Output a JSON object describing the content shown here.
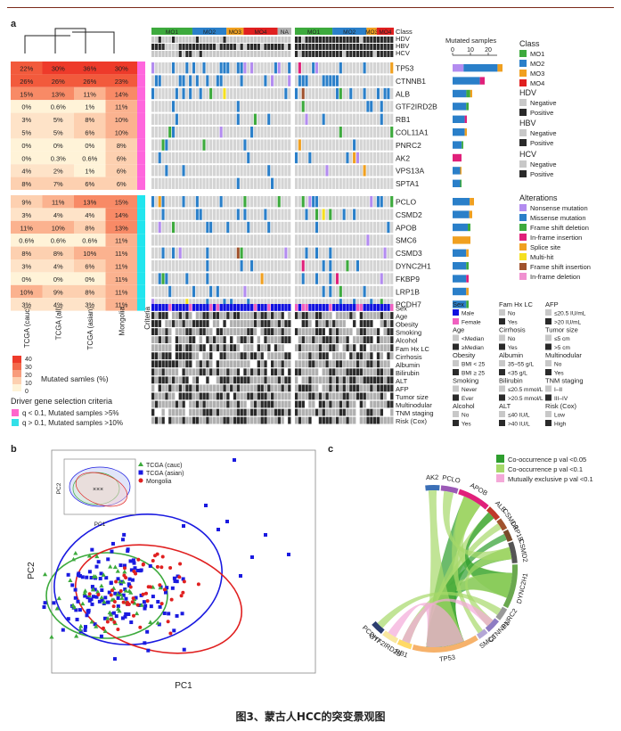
{
  "caption": "图3、蒙古人HCC的突变景观图",
  "panel_a": {
    "label": "a",
    "class_segments": [
      "MO1",
      "MO2",
      "MO3",
      "MO4",
      "NA",
      "MO1",
      "MO2",
      "MO3",
      "MO4"
    ],
    "track_labels": [
      "Class",
      "HDV",
      "HBV",
      "HCV"
    ],
    "mutated_samples_title": "Mutated samples",
    "bar_ticks": [
      "0",
      "10",
      "20"
    ],
    "cohorts": [
      "TCGA (cauc)",
      "TCGA (all)",
      "TCGA (asian)",
      "Mongolia"
    ],
    "criteria_label": "Criteria",
    "genes_group1": [
      {
        "name": "TP53",
        "pct": [
          "22%",
          "30%",
          "36%",
          "30%"
        ]
      },
      {
        "name": "CTNNB1",
        "pct": [
          "26%",
          "26%",
          "26%",
          "23%"
        ]
      },
      {
        "name": "ALB",
        "pct": [
          "15%",
          "13%",
          "11%",
          "14%"
        ]
      },
      {
        "name": "GTF2IRD2B",
        "pct": [
          "0%",
          "0.6%",
          "1%",
          "11%"
        ]
      },
      {
        "name": "RB1",
        "pct": [
          "3%",
          "5%",
          "8%",
          "10%"
        ]
      },
      {
        "name": "COL11A1",
        "pct": [
          "5%",
          "5%",
          "6%",
          "10%"
        ]
      },
      {
        "name": "PNRC2",
        "pct": [
          "0%",
          "0%",
          "0%",
          "8%"
        ]
      },
      {
        "name": "AK2",
        "pct": [
          "0%",
          "0.3%",
          "0.6%",
          "6%"
        ]
      },
      {
        "name": "VPS13A",
        "pct": [
          "4%",
          "2%",
          "1%",
          "6%"
        ]
      },
      {
        "name": "SPTA1",
        "pct": [
          "8%",
          "7%",
          "6%",
          "6%"
        ]
      }
    ],
    "genes_group2": [
      {
        "name": "PCLO",
        "pct": [
          "9%",
          "11%",
          "13%",
          "15%"
        ]
      },
      {
        "name": "CSMD2",
        "pct": [
          "3%",
          "4%",
          "4%",
          "14%"
        ]
      },
      {
        "name": "APOB",
        "pct": [
          "11%",
          "10%",
          "8%",
          "13%"
        ]
      },
      {
        "name": "SMC6",
        "pct": [
          "0.6%",
          "0.6%",
          "0.6%",
          "11%"
        ]
      },
      {
        "name": "CSMD3",
        "pct": [
          "8%",
          "8%",
          "10%",
          "11%"
        ]
      },
      {
        "name": "DYNC2H1",
        "pct": [
          "3%",
          "4%",
          "6%",
          "11%"
        ]
      },
      {
        "name": "FKBP9",
        "pct": [
          "0%",
          "0%",
          "0%",
          "11%"
        ]
      },
      {
        "name": "LRP1B",
        "pct": [
          "10%",
          "9%",
          "8%",
          "11%"
        ]
      },
      {
        "name": "PCDH7",
        "pct": [
          "3%",
          "4%",
          "3%",
          "11%"
        ]
      }
    ],
    "gene_bar_values": [
      28,
      18,
      11,
      9,
      8,
      8,
      6,
      5,
      5,
      5,
      12,
      11,
      10,
      10,
      9,
      9,
      9,
      9,
      9
    ],
    "clinical_rows": [
      "Sex",
      "Age",
      "Obesity",
      "Smoking",
      "Alcohol",
      "Fam Hx LC",
      "Cirrhosis",
      "Albumin",
      "Bilirubin",
      "ALT",
      "AFP",
      "Tumor size",
      "Multinodular",
      "TNM staging",
      "Risk (Cox)"
    ],
    "heat_legend": {
      "ticks": [
        "40",
        "30",
        "20",
        "10",
        "0"
      ],
      "title": "Mutated samles (%)"
    },
    "driver_title": "Driver gene selection criteria",
    "driver_items": [
      {
        "text": "q < 0.1, Mutated samples >5%",
        "color": "#ff66cc"
      },
      {
        "text": "q > 0.1, Mutated samples >10%",
        "color": "#33e0e8"
      }
    ],
    "legend_class": {
      "title": "Class",
      "items": [
        {
          "t": "MO1",
          "c": "#3daa3d"
        },
        {
          "t": "MO2",
          "c": "#2a7fc9"
        },
        {
          "t": "MO3",
          "c": "#f0a020"
        },
        {
          "t": "MO4",
          "c": "#e02020"
        }
      ]
    },
    "legend_hdv": {
      "title": "HDV",
      "items": [
        {
          "t": "Negative",
          "c": "#c8c8c8"
        },
        {
          "t": "Positive",
          "c": "#2a2a2a"
        }
      ]
    },
    "legend_hbv": {
      "title": "HBV",
      "items": [
        {
          "t": "Negative",
          "c": "#c8c8c8"
        },
        {
          "t": "Positive",
          "c": "#2a2a2a"
        }
      ]
    },
    "legend_hcv": {
      "title": "HCV",
      "items": [
        {
          "t": "Negative",
          "c": "#c8c8c8"
        },
        {
          "t": "Positive",
          "c": "#2a2a2a"
        }
      ]
    },
    "legend_alt": {
      "title": "Alterations",
      "items": [
        {
          "t": "Nonsense mutation",
          "c": "#b38cf0"
        },
        {
          "t": "Missense mutation",
          "c": "#2a7fc9"
        },
        {
          "t": "Frame shift deletion",
          "c": "#3daa3d"
        },
        {
          "t": "In-frame insertion",
          "c": "#e0207a"
        },
        {
          "t": "Splice site",
          "c": "#f0a020"
        },
        {
          "t": "Multi-hit",
          "c": "#f5e020"
        },
        {
          "t": "Frame shift insertion",
          "c": "#a0522d"
        },
        {
          "t": "In-frame deletion",
          "c": "#f090d0"
        }
      ]
    },
    "clin_legend_cols": [
      [
        {
          "title": "Sex",
          "items": [
            [
              "Male",
              "#1010e0"
            ],
            [
              "Female",
              "#f060c0"
            ]
          ]
        },
        {
          "title": "Age",
          "items": [
            [
              "<Median",
              "#c8c8c8"
            ],
            [
              "≥Median",
              "#2a2a2a"
            ]
          ]
        },
        {
          "title": "Obesity",
          "items": [
            [
              "BMI < 25",
              "#c8c8c8"
            ],
            [
              "BMI ≥ 25",
              "#2a2a2a"
            ]
          ]
        },
        {
          "title": "Smoking",
          "items": [
            [
              "Never",
              "#c8c8c8"
            ],
            [
              "Ever",
              "#2a2a2a"
            ]
          ]
        },
        {
          "title": "Alcohol",
          "items": [
            [
              "No",
              "#c8c8c8"
            ],
            [
              "Yes",
              "#2a2a2a"
            ]
          ]
        }
      ],
      [
        {
          "title": "Fam Hx LC",
          "items": [
            [
              "No",
              "#c8c8c8"
            ],
            [
              "Yes",
              "#2a2a2a"
            ]
          ]
        },
        {
          "title": "Cirrhosis",
          "items": [
            [
              "No",
              "#c8c8c8"
            ],
            [
              "Yes",
              "#2a2a2a"
            ]
          ]
        },
        {
          "title": "Albumin",
          "items": [
            [
              "35~55 g/L",
              "#c8c8c8"
            ],
            [
              "<35 g/L",
              "#2a2a2a"
            ]
          ]
        },
        {
          "title": "Bilirubin",
          "items": [
            [
              "≤20.5 mmol/L",
              "#c8c8c8"
            ],
            [
              ">20.5 mmol/L",
              "#2a2a2a"
            ]
          ]
        },
        {
          "title": "ALT",
          "items": [
            [
              "≤40 IU/L",
              "#c8c8c8"
            ],
            [
              ">40 IU/L",
              "#2a2a2a"
            ]
          ]
        }
      ],
      [
        {
          "title": "AFP",
          "items": [
            [
              "≤20.5 IU/mL",
              "#c8c8c8"
            ],
            [
              ">20 IU/mL",
              "#2a2a2a"
            ]
          ]
        },
        {
          "title": "Tumor size",
          "items": [
            [
              "≤5 cm",
              "#c8c8c8"
            ],
            [
              ">5 cm",
              "#2a2a2a"
            ]
          ]
        },
        {
          "title": "Multinodular",
          "items": [
            [
              "No",
              "#c8c8c8"
            ],
            [
              "Yes",
              "#2a2a2a"
            ]
          ]
        },
        {
          "title": "TNM staging",
          "items": [
            [
              "I–II",
              "#c8c8c8"
            ],
            [
              "III–IV",
              "#2a2a2a"
            ]
          ]
        },
        {
          "title": "Risk (Cox)",
          "items": [
            [
              "Low",
              "#c8c8c8"
            ],
            [
              "High",
              "#2a2a2a"
            ]
          ]
        }
      ]
    ]
  },
  "panel_b": {
    "label": "b",
    "xlabel": "PC1",
    "ylabel": "PC2",
    "legend": [
      {
        "name": "TCGA (cauc)",
        "color": "#3daa3d",
        "shape": "triangle"
      },
      {
        "name": "TCGA (asian)",
        "color": "#1a1ae0",
        "shape": "square"
      },
      {
        "name": "Mongolia",
        "color": "#e02020",
        "shape": "circle"
      }
    ],
    "inset_xlabel": "PC1",
    "inset_ylabel": "PC2"
  },
  "panel_c": {
    "label": "c",
    "legend": [
      {
        "text": "Co-occurrence p val <0.05",
        "color": "#2e9e2e"
      },
      {
        "text": "Co-occurrence p val <0.1",
        "color": "#a6d96a"
      },
      {
        "text": "Mutually exclusive p val <0.1",
        "color": "#f4a9d8"
      }
    ],
    "genes": [
      {
        "name": "AK2",
        "color": "#3b6fb6"
      },
      {
        "name": "PCLO",
        "color": "#9b59b6"
      },
      {
        "name": "APOB",
        "color": "#e0207a"
      },
      {
        "name": "ALB",
        "color": "#c0392b"
      },
      {
        "name": "CSMD3",
        "color": "#a0522d"
      },
      {
        "name": "LRP1B",
        "color": "#7a4a2a"
      },
      {
        "name": "CSMD2",
        "color": "#555555"
      },
      {
        "name": "DYNC2H1",
        "color": "#6aa84f"
      },
      {
        "name": "PNRC2",
        "color": "#999999"
      },
      {
        "name": "CTNNB1",
        "color": "#8e7cc3"
      },
      {
        "name": "SMC6",
        "color": "#b4a7d6"
      },
      {
        "name": "TP53",
        "color": "#f6b26b"
      },
      {
        "name": "RB1",
        "color": "#ffd966"
      },
      {
        "name": "GTF2IRD2B",
        "color": "#f9e79f"
      },
      {
        "name": "PCDH7",
        "color": "#2c3e70"
      }
    ]
  }
}
